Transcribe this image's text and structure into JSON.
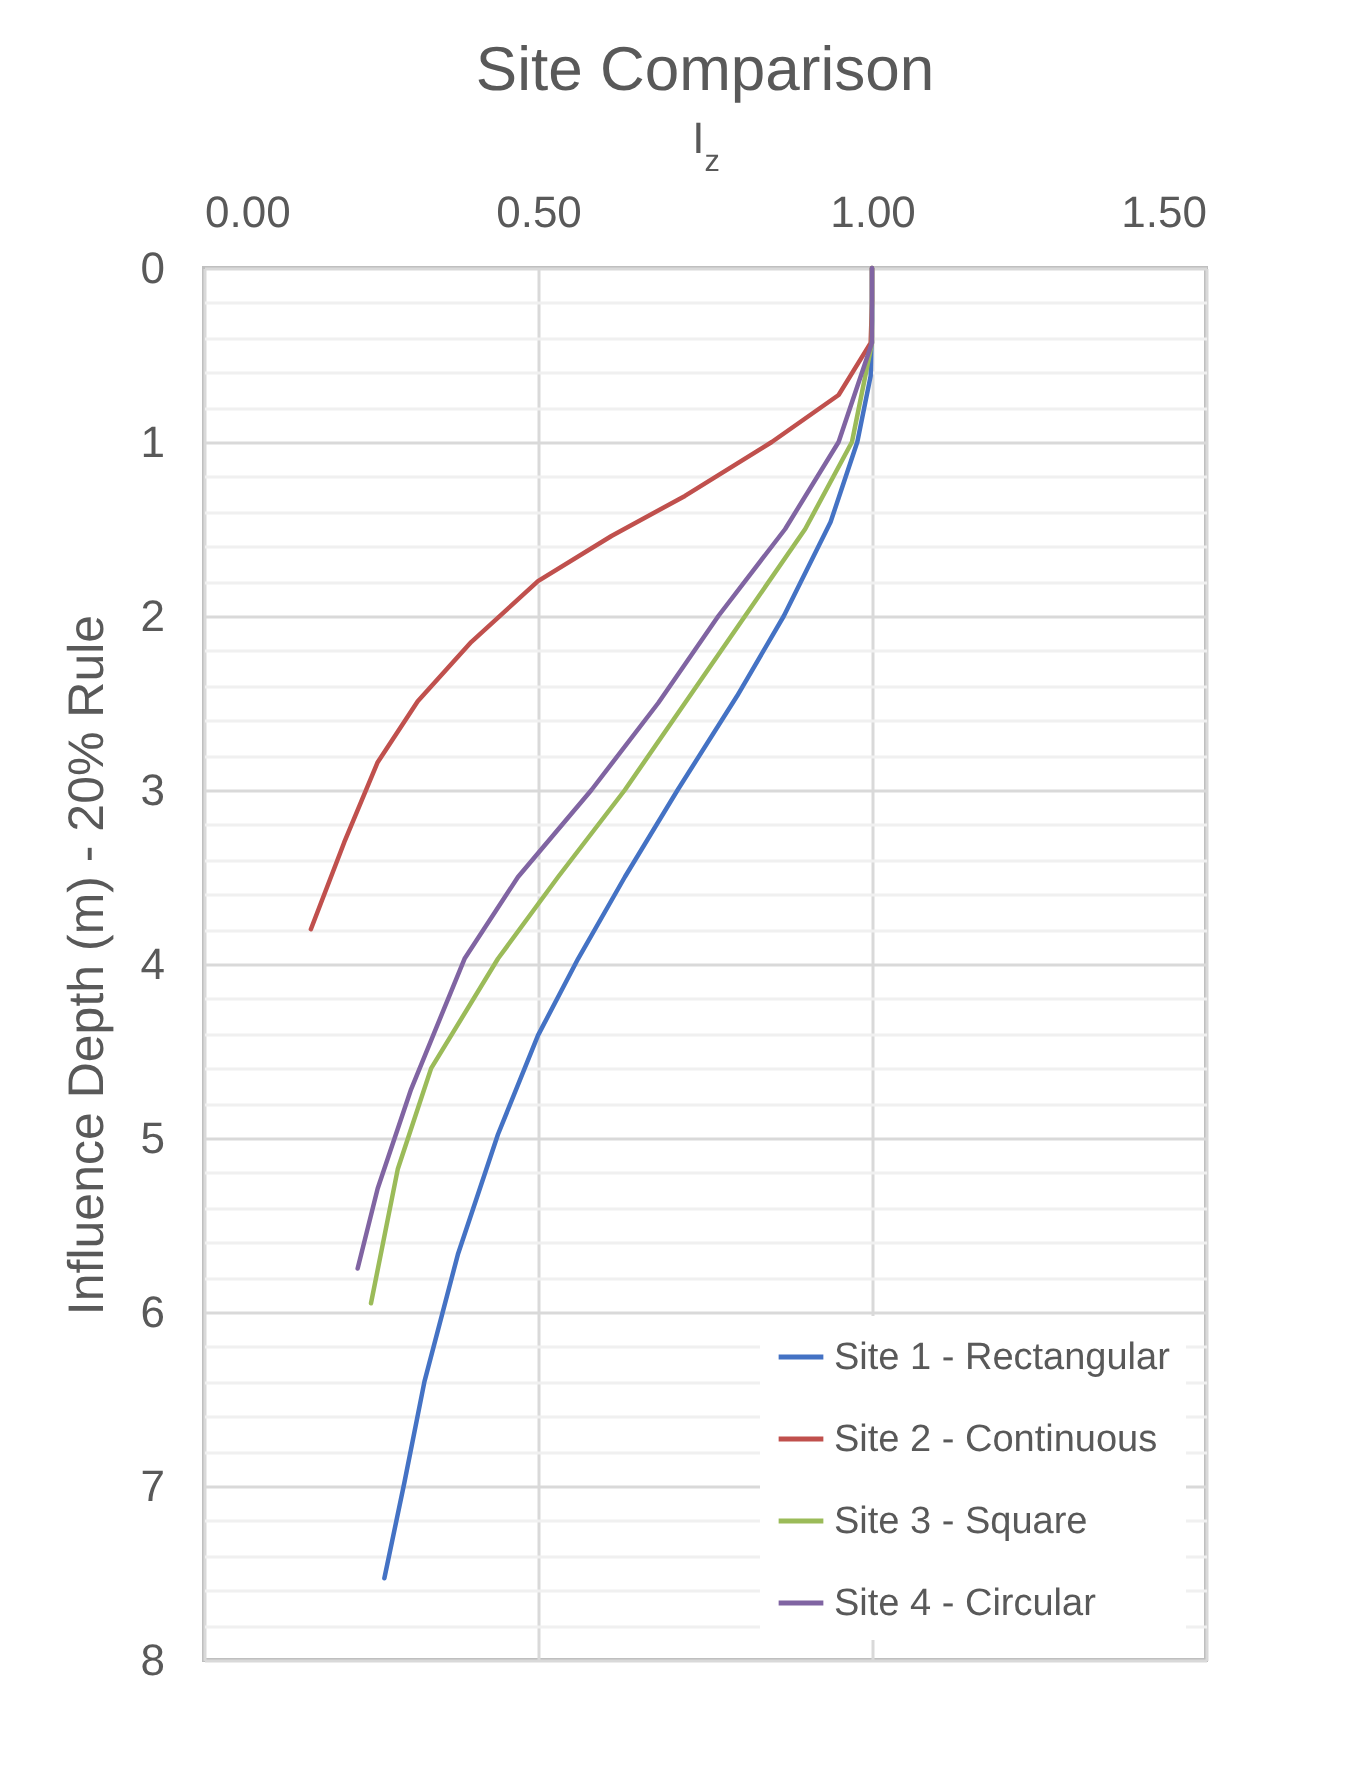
{
  "chart_data": {
    "type": "line",
    "title": "Site Comparison",
    "xlabel": "I$_{z}$",
    "ylabel": "Influence Depth (m) - 20% Rule",
    "xlim": [
      0,
      1.5
    ],
    "xticks": [
      {
        "value": 0,
        "label": "0.00"
      },
      {
        "value": 0.5,
        "label": "0.50"
      },
      {
        "value": 1,
        "label": "1.00"
      },
      {
        "value": 1.5,
        "label": "1.50"
      }
    ],
    "ylim": [
      8,
      0
    ],
    "yticks": [
      0,
      {
        "value": 0.2,
        "label": null
      },
      {
        "value": 0.4,
        "label": null
      },
      {
        "value": 0.6,
        "label": null
      },
      {
        "value": 0.8,
        "label": null
      },
      1,
      {
        "value": 1.2,
        "label": null
      },
      {
        "value": 1.4,
        "label": null
      },
      {
        "value": 1.6,
        "label": null
      },
      {
        "value": 1.8,
        "label": null
      },
      2,
      {
        "value": 2.2,
        "label": null
      },
      {
        "value": 2.4,
        "label": null
      },
      {
        "value": 2.6,
        "label": null
      },
      {
        "value": 2.8,
        "label": null
      },
      3,
      {
        "value": 3.2,
        "label": null
      },
      {
        "value": 3.4,
        "label": null
      },
      {
        "value": 3.6,
        "label": null
      },
      {
        "value": 3.8,
        "label": null
      },
      4,
      {
        "value": 4.2,
        "label": null
      },
      {
        "value": 4.4,
        "label": null
      },
      {
        "value": 4.6,
        "label": null
      },
      {
        "value": 4.8,
        "label": null
      },
      5,
      {
        "value": 5.2,
        "label": null
      },
      {
        "value": 5.4,
        "label": null
      },
      {
        "value": 5.6,
        "label": null
      },
      {
        "value": 5.8,
        "label": null
      },
      6,
      {
        "value": 6.2,
        "label": null
      },
      {
        "value": 6.4,
        "label": null
      },
      {
        "value": 6.6,
        "label": null
      },
      {
        "value": 6.8,
        "label": null
      },
      7,
      {
        "value": 7.2,
        "label": null
      },
      {
        "value": 7.4,
        "label": null
      },
      {
        "value": 7.6,
        "label": null
      },
      {
        "value": 7.8,
        "label": null
      },
      8
    ],
    "grid": true,
    "legend": "bottom right",
    "marker": "none",
    "line_style": "solid",
    "series": [
      {
        "name": "Site 1 - Rectangular",
        "color": "#4472c4",
        "x": [
          1.0,
          1.0,
          0.998,
          0.978,
          0.938,
          0.868,
          0.798,
          0.709,
          0.63,
          0.56,
          0.5,
          0.44,
          0.38,
          0.33,
          0.3,
          0.27
        ],
        "values": [
          0,
          0.3,
          0.62,
          1.0,
          1.46,
          2.0,
          2.46,
          3.0,
          3.5,
          3.97,
          4.41,
          4.98,
          5.67,
          6.4,
          6.98,
          7.53
        ]
      },
      {
        "name": "Site 2 - Continuous",
        "color": "#c0504d",
        "x": [
          1.0,
          1.0,
          0.998,
          0.95,
          0.85,
          0.72,
          0.61,
          0.5,
          0.4,
          0.32,
          0.26,
          0.21,
          0.16
        ],
        "values": [
          0,
          0.2,
          0.43,
          0.73,
          1.0,
          1.31,
          1.54,
          1.8,
          2.15,
          2.49,
          2.84,
          3.3,
          3.8
        ]
      },
      {
        "name": "Site 3 - Square",
        "color": "#9bbb59",
        "x": [
          1.0,
          1.0,
          0.97,
          0.9,
          0.81,
          0.72,
          0.63,
          0.53,
          0.44,
          0.34,
          0.29,
          0.25
        ],
        "values": [
          0,
          0.43,
          1.0,
          1.5,
          2.0,
          2.5,
          3.0,
          3.5,
          3.97,
          4.6,
          5.18,
          5.95
        ]
      },
      {
        "name": "Site 4 - Circular",
        "color": "#8064a2",
        "x": [
          1.0,
          1.0,
          0.95,
          0.87,
          0.77,
          0.68,
          0.58,
          0.47,
          0.39,
          0.31,
          0.26,
          0.23
        ],
        "values": [
          0,
          0.43,
          1.0,
          1.5,
          2.0,
          2.5,
          3.0,
          3.5,
          3.97,
          4.72,
          5.29,
          5.75
        ]
      }
    ]
  }
}
